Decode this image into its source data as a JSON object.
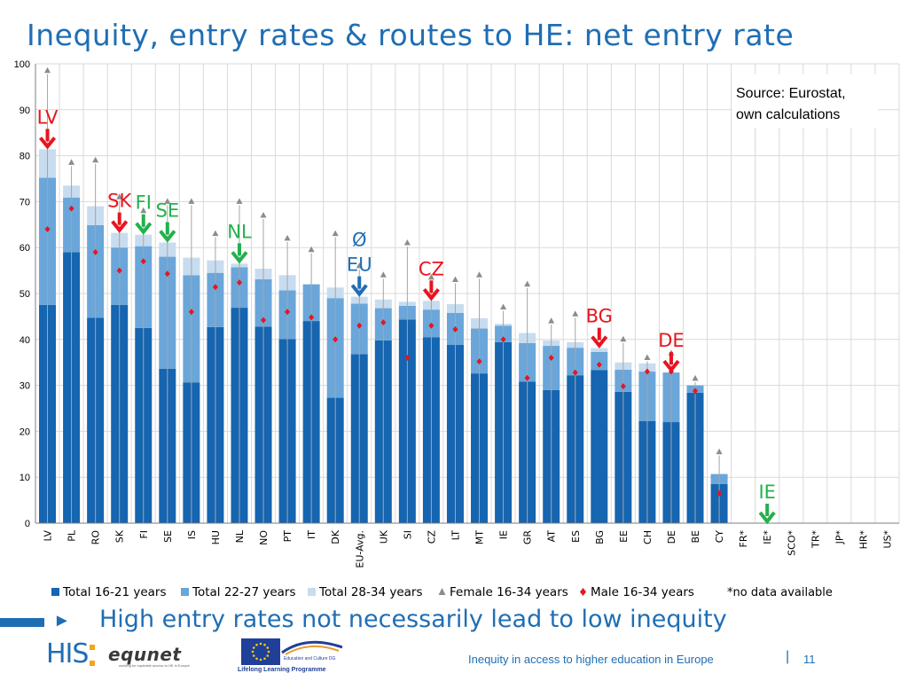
{
  "slide": {
    "title": "Inequity, entry rates & routes to HE: net entry rate",
    "subtitle": "High entry rates not necessarily lead to low inequity",
    "footer_text": "Inequity in access to higher education in Europe",
    "page_number": "11",
    "logo_his": "HIS",
    "logo_equnet": "equnet",
    "logo_equnet_tagline": "working for equitable access to HE in Europe",
    "logo_eac": "Education and Culture DG",
    "logo_llp": "Lifelong Learning Programme"
  },
  "colors": {
    "total_16_21": "#1565b0",
    "total_22_27": "#6aa6d9",
    "total_28_34": "#c8dcef",
    "female": "#8c8c8c",
    "male": "#e8141e",
    "arrow_red": "#e8141e",
    "arrow_green": "#22b14c",
    "arrow_blue": "#1f6eb4",
    "title_blue": "#1f6eb4"
  },
  "chart_data": {
    "type": "bar",
    "stacked": true,
    "ylim": [
      0,
      100
    ],
    "yticks": [
      0,
      10,
      20,
      30,
      40,
      50,
      60,
      70,
      80,
      90,
      100
    ],
    "grid": true,
    "legend_position": "bottom",
    "categories": [
      "LV",
      "PL",
      "RO",
      "SK",
      "FI",
      "SE",
      "IS",
      "HU",
      "NL",
      "NO",
      "PT",
      "IT",
      "DK",
      "EU-Avg.",
      "UK",
      "SI",
      "CZ",
      "LT",
      "MT",
      "IE",
      "GR",
      "AT",
      "ES",
      "BG",
      "EE",
      "CH",
      "DE",
      "BE",
      "CY",
      "FR*",
      "IE*",
      "SCO*",
      "TR*",
      "JP*",
      "HR*",
      "US*"
    ],
    "series": [
      {
        "name": "Total 16-21 years",
        "kind": "bar",
        "color_key": "total_16_21",
        "values": [
          47.5,
          59,
          44.7,
          47.5,
          42.5,
          33.6,
          30.6,
          42.7,
          46.9,
          42.8,
          40.1,
          44,
          27.3,
          36.8,
          39.8,
          44.3,
          40.5,
          38.8,
          32.6,
          39.4,
          30.8,
          29,
          32.2,
          33.3,
          28.6,
          22.2,
          22,
          28.4,
          8.5,
          null,
          null,
          null,
          null,
          null,
          null,
          null
        ]
      },
      {
        "name": "Total 22-27 years",
        "kind": "bar",
        "color_key": "total_22_27",
        "values": [
          27.7,
          11.9,
          20.2,
          12.5,
          17.8,
          24.4,
          23.4,
          11.8,
          8.8,
          10.3,
          10.6,
          8,
          21.7,
          11,
          7,
          3,
          6,
          7,
          9.8,
          3.6,
          8.4,
          9.6,
          6,
          4,
          4.8,
          10.8,
          10.8,
          1.6,
          2.2,
          null,
          null,
          null,
          null,
          null,
          null,
          null
        ]
      },
      {
        "name": "Total 28-34 years",
        "kind": "bar",
        "color_key": "total_28_34",
        "values": [
          6.2,
          2.6,
          4.1,
          3.2,
          2.5,
          3.1,
          3.8,
          2.7,
          0.8,
          2.3,
          3.3,
          0,
          2.3,
          1.5,
          1.9,
          0.9,
          1.9,
          1.9,
          2.2,
          0.4,
          2.2,
          1.2,
          1.2,
          0.8,
          1.6,
          1.8,
          0,
          0,
          0,
          null,
          null,
          null,
          null,
          null,
          null,
          null
        ]
      },
      {
        "name": "Female 16-34 years",
        "kind": "marker",
        "color_key": "female",
        "values": [
          98.5,
          78.5,
          79,
          71,
          68,
          70,
          70,
          63,
          70,
          67,
          62,
          59.5,
          63,
          56,
          54,
          61,
          53.5,
          53,
          54,
          47,
          52,
          44,
          45.5,
          null,
          40,
          36,
          37,
          31.5,
          15.5,
          null,
          null,
          null,
          null,
          null,
          null,
          null
        ]
      },
      {
        "name": "Male 16-34 years",
        "kind": "marker",
        "color_key": "male",
        "values": [
          64,
          68.5,
          59,
          55,
          57,
          54.3,
          46,
          51.4,
          52.4,
          44.2,
          46,
          44.8,
          40,
          43,
          43.7,
          36,
          43,
          42.2,
          35.2,
          40,
          31.6,
          36,
          32.8,
          34.5,
          29.8,
          33,
          33,
          28.8,
          6.5,
          null,
          null,
          null,
          null,
          null,
          null,
          null
        ]
      }
    ],
    "legend": [
      "Total 16-21 years",
      "Total 22-27 years",
      "Total 28-34 years",
      "Female 16-34 years",
      "Male 16-34 years"
    ],
    "annotations": [
      {
        "text": "LV",
        "category": "LV",
        "color_key": "arrow_red",
        "arrow": "down"
      },
      {
        "text": "SK",
        "category": "SK",
        "color_key": "arrow_red",
        "arrow": "down"
      },
      {
        "text": "FI",
        "category": "FI",
        "color_key": "arrow_green",
        "arrow": "down"
      },
      {
        "text": "SE",
        "category": "SE",
        "color_key": "arrow_green",
        "arrow": "down"
      },
      {
        "text": "NL",
        "category": "NL",
        "color_key": "arrow_green",
        "arrow": "down"
      },
      {
        "text": "Ø\nEU",
        "category": "EU-Avg.",
        "color_key": "arrow_blue",
        "arrow": "down"
      },
      {
        "text": "CZ",
        "category": "CZ",
        "color_key": "arrow_red",
        "arrow": "down"
      },
      {
        "text": "BG",
        "category": "BG",
        "color_key": "arrow_red",
        "arrow": "down"
      },
      {
        "text": "DE",
        "category": "DE",
        "color_key": "arrow_red",
        "arrow": "down"
      },
      {
        "text": "IE",
        "category": "IE*",
        "color_key": "arrow_green",
        "arrow": "down"
      }
    ],
    "source_note": "Source: Eurostat, own calculations",
    "footnote": "*no data available"
  }
}
